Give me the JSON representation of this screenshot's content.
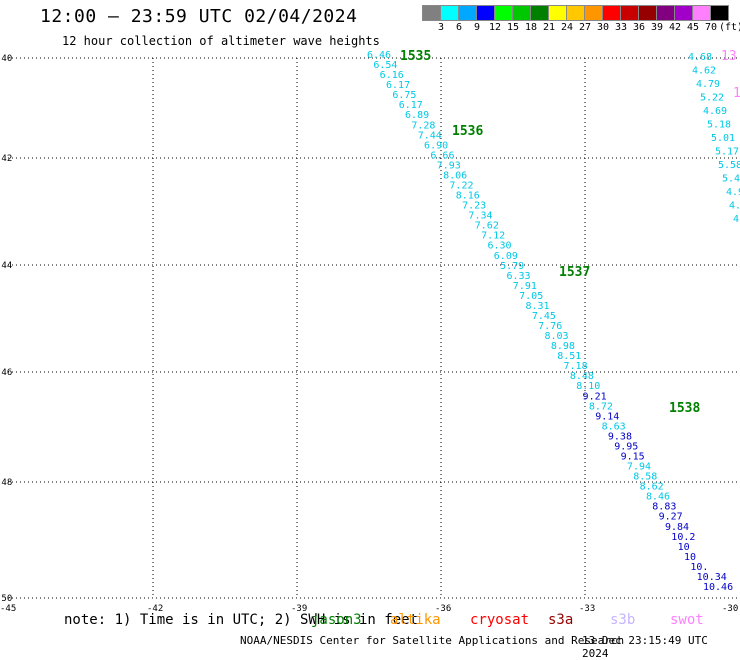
{
  "header": {
    "title": "12:00 – 23:59 UTC 02/04/2024",
    "subtitle": "12 hour collection of altimeter wave heights"
  },
  "color_scale": {
    "labels": [
      "3",
      "6",
      "9",
      "12",
      "15",
      "18",
      "21",
      "24",
      "27",
      "30",
      "33",
      "36",
      "39",
      "42",
      "45",
      "70",
      "(ft)"
    ],
    "colors": [
      "#808080",
      "#00ffff",
      "#00a8ff",
      "#0000ff",
      "#00ff00",
      "#00c800",
      "#008000",
      "#ffff00",
      "#ffc800",
      "#ff9600",
      "#ff0000",
      "#c80000",
      "#960000",
      "#800080",
      "#a000c8",
      "#ff80ff",
      "#000000"
    ]
  },
  "axes": {
    "lat_labels": [
      "-40",
      "-42",
      "-44",
      "-46",
      "-48",
      "-50"
    ],
    "lon_labels": [
      "-45",
      "-42",
      "-39",
      "-36",
      "-33",
      "-30"
    ]
  },
  "track_heights": [
    "6.46",
    "6.54",
    "6.16",
    "6.17",
    "6.75",
    "6.17",
    "6.89",
    "7.28",
    "7.44",
    "6.90",
    "6.66",
    "7.93",
    "8.06",
    "7.22",
    "8.16",
    "7.23",
    "7.34",
    "7.62",
    "7.12",
    "6.30",
    "6.09",
    "5.79",
    "6.33",
    "7.91",
    "7.05",
    "8.31",
    "7.45",
    "7.76",
    "8.03",
    "8.98",
    "8.51",
    "7.18",
    "8.48",
    "8.10",
    "9.21",
    "8.72",
    "9.14",
    "8.63",
    "9.38",
    "9.95",
    "9.15",
    "7.94",
    "8.58",
    "8.62",
    "8.46",
    "8.83",
    "9.27",
    "9.84",
    "10.2",
    "10",
    "10",
    "10.",
    "10.34",
    "10.46"
  ],
  "track_colors": [
    "#00c8e6",
    "#00c8e6",
    "#00c8e6",
    "#00c8e6",
    "#00c8e6",
    "#00c8e6",
    "#00c8e6",
    "#00c8e6",
    "#00c8e6",
    "#00c8e6",
    "#00c8e6",
    "#00c8e6",
    "#00c8e6",
    "#00c8e6",
    "#00c8e6",
    "#00c8e6",
    "#00c8e6",
    "#00c8e6",
    "#00c8e6",
    "#00c8e6",
    "#00c8e6",
    "#00c8e6",
    "#00c8e6",
    "#00c8e6",
    "#00c8e6",
    "#00c8e6",
    "#00c8e6",
    "#00c8e6",
    "#00c8e6",
    "#00c8e6",
    "#00c8e6",
    "#00c8e6",
    "#00c8e6",
    "#00c8e6",
    "#0000c8",
    "#00c8e6",
    "#0000c8",
    "#00c8e6",
    "#0000c8",
    "#0000c8",
    "#0000c8",
    "#00c8e6",
    "#00c8e6",
    "#00c8e6",
    "#00c8e6",
    "#0000c8",
    "#0000c8",
    "#0000c8",
    "#0000c8",
    "#0000c8",
    "#0000c8",
    "#0000c8",
    "#0000c8",
    "#0000c8"
  ],
  "time_marks": [
    "1535",
    "1536",
    "1537",
    "1538"
  ],
  "right_track_heights": [
    "4.68",
    "4.62",
    "4.79",
    "5.22",
    "4.69",
    "5.18",
    "5.01",
    "5.17",
    "5.58",
    "5.4",
    "4.9",
    "4.",
    "4"
  ],
  "right_track_color": "#00c8e6",
  "edge_fragments": [
    "13",
    "1"
  ],
  "edge_fragment_color": "#ff80ff",
  "note_text": "note: 1) Time is in UTC; 2) SWH is in feet",
  "satellites": [
    {
      "name": "jason3",
      "color": "#008000"
    },
    {
      "name": "altika",
      "color": "#ff9600"
    },
    {
      "name": "cryosat",
      "color": "#ff0000"
    },
    {
      "name": "s3a",
      "color": "#960000"
    },
    {
      "name": "s3b",
      "color": "#c8b4ff"
    },
    {
      "name": "swot",
      "color": "#ff80ff"
    }
  ],
  "footer": {
    "credit": "NOAA/NESDIS Center for Satellite Applications and Research",
    "timestamp": "13 Dec 23:15:49 UTC 2024"
  }
}
